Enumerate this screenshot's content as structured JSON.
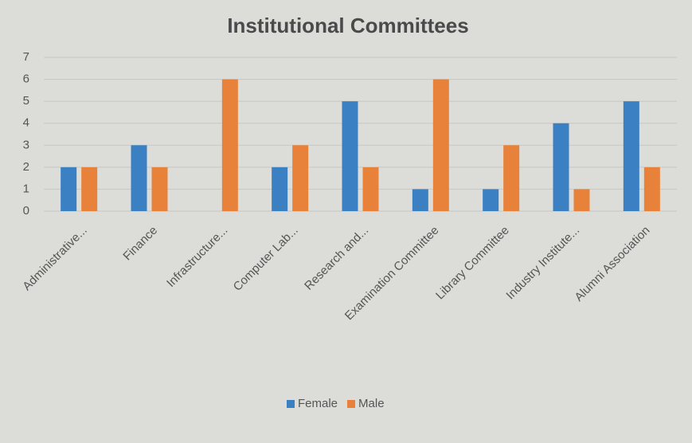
{
  "chart_data": {
    "type": "bar",
    "title": "Institutional Committees",
    "categories": [
      "Administrative...",
      "Finance",
      "Infrastructure...",
      "Computer Lab...",
      "Research and...",
      "Examination Committee",
      "Library Committee",
      "Industry Institute...",
      "Alumni Association"
    ],
    "series": [
      {
        "name": "Female",
        "color": "#3a80c3",
        "values": [
          2,
          3,
          0,
          2,
          5,
          1,
          1,
          4,
          5
        ]
      },
      {
        "name": "Male",
        "color": "#e8823a",
        "values": [
          2,
          2,
          6,
          3,
          2,
          6,
          3,
          1,
          2
        ]
      }
    ],
    "ylim": [
      0,
      7
    ],
    "yticks": [
      0,
      1,
      2,
      3,
      4,
      5,
      6,
      7
    ],
    "grid": true,
    "legend": "bottom"
  }
}
